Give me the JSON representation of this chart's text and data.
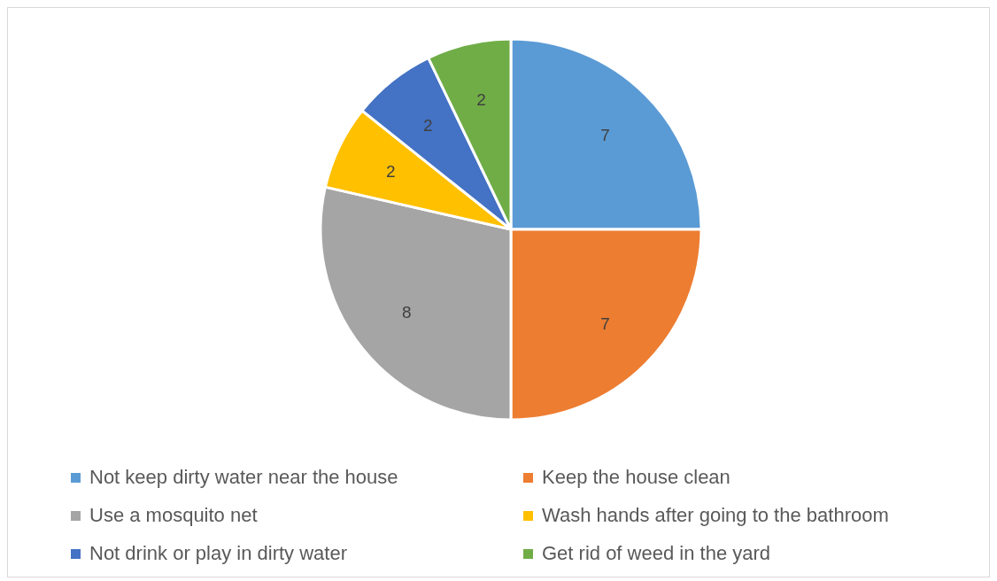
{
  "chart_data": {
    "type": "pie",
    "categories": [
      "Not keep dirty water near the house",
      "Keep the house clean",
      "Use a mosquito net",
      "Wash hands after going to the bathroom",
      "Not drink or play in dirty water",
      "Get rid of weed in the yard"
    ],
    "values": [
      7,
      7,
      8,
      2,
      2,
      2
    ],
    "colors": [
      "#5b9bd5",
      "#ed7d31",
      "#a5a5a5",
      "#ffc000",
      "#4472c4",
      "#70ad47"
    ],
    "data_labels": true,
    "legend": "bottom"
  }
}
